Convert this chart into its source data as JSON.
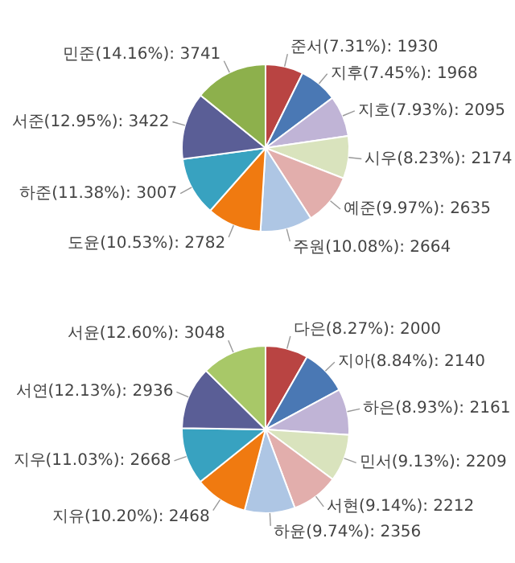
{
  "chart_data": [
    {
      "type": "pie",
      "categories": [
        "준서",
        "지후",
        "지호",
        "시우",
        "예준",
        "주원",
        "도윤",
        "하준",
        "서준",
        "민준"
      ],
      "values": [
        1930,
        1968,
        2095,
        2174,
        2635,
        2664,
        2782,
        3007,
        3422,
        3741
      ],
      "value_labels": [
        "(7.31%): 1930",
        "(7.45%): 1968",
        "(7.93%): 2095",
        "(8.23%): 2174",
        "(9.97%): 2635",
        "(10.08%): 2664",
        "(10.53%): 2782",
        "(11.38%): 3007",
        "(12.95%): 3422",
        "(14.16%): 3741"
      ],
      "colors": [
        "#b94442",
        "#4a78b4",
        "#c0b4d6",
        "#d9e3bd",
        "#e2aeac",
        "#aec6e4",
        "#f07a10",
        "#38a2c0",
        "#5a5e96",
        "#8db04c"
      ]
    },
    {
      "type": "pie",
      "categories": [
        "다은",
        "지아",
        "하은",
        "민서",
        "서현",
        "하윤",
        "지유",
        "지우",
        "서연",
        "서윤"
      ],
      "values": [
        2000,
        2140,
        2161,
        2209,
        2212,
        2356,
        2468,
        2668,
        2936,
        3048
      ],
      "value_labels": [
        "(8.27%): 2000",
        "(8.84%): 2140",
        "(8.93%): 2161",
        "(9.13%): 2209",
        "(9.14%): 2212",
        "(9.74%): 2356",
        "(10.20%): 2468",
        "(11.03%): 2668",
        "(12.13%): 2936",
        "(12.60%): 3048"
      ],
      "colors": [
        "#b94442",
        "#4a78b4",
        "#c0b4d6",
        "#d9e3bd",
        "#e2aeac",
        "#aec6e4",
        "#f07a10",
        "#38a2c0",
        "#5a5e96",
        "#a8c868"
      ]
    }
  ]
}
